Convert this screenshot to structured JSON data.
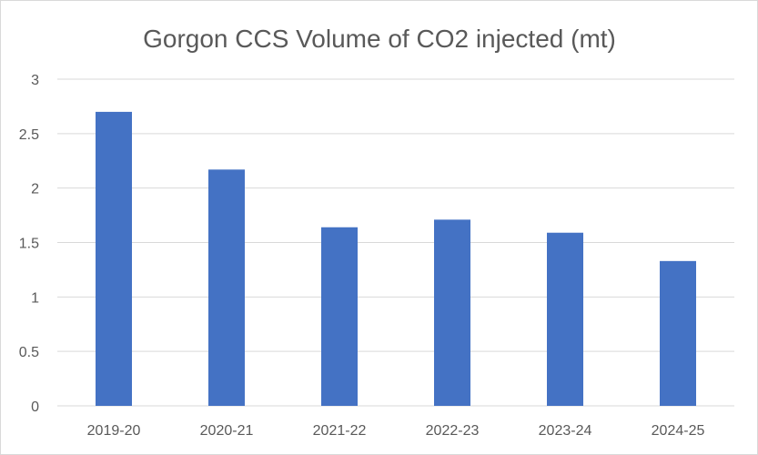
{
  "chart_data": {
    "type": "bar",
    "title": "Gorgon CCS Volume of CO2 injected (mt)",
    "xlabel": "",
    "ylabel": "",
    "categories": [
      "2019-20",
      "2020-21",
      "2021-22",
      "2022-23",
      "2023-24",
      "2024-25"
    ],
    "values": [
      2.7,
      2.17,
      1.64,
      1.71,
      1.59,
      1.33
    ],
    "ylim": [
      0,
      3
    ],
    "yticks": [
      0,
      0.5,
      1,
      1.5,
      2,
      2.5,
      3
    ],
    "ytick_labels": [
      "0",
      "0.5",
      "1",
      "1.5",
      "2",
      "2.5",
      "3"
    ],
    "grid": true,
    "legend": "none",
    "colors": {
      "bar": "#4472c4",
      "grid": "#d9d9d9",
      "text": "#595959"
    }
  }
}
